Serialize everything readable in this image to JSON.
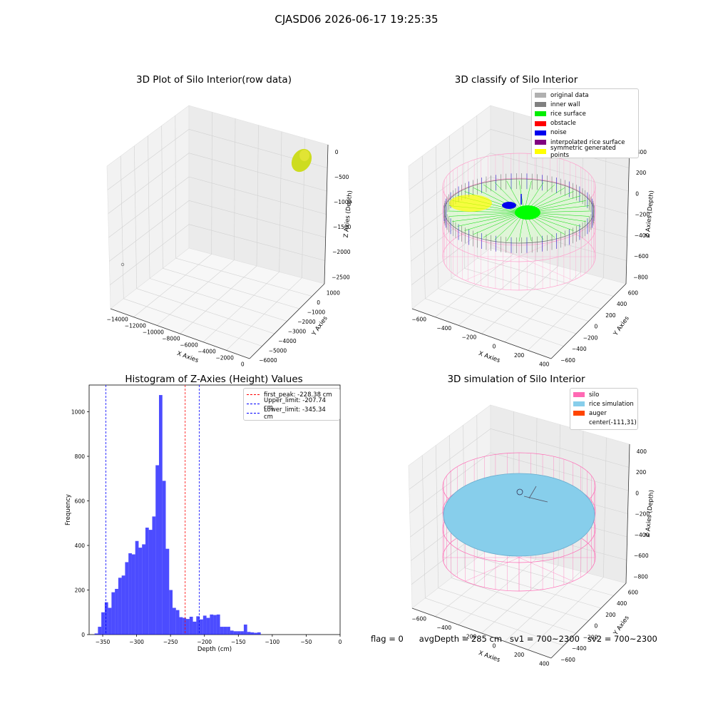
{
  "suptitle": "CJASD06 2026-06-17 19:25:35",
  "panels": {
    "raw": {
      "title": "3D Plot of Silo Interior(row data)",
      "xlabel": "X Axies",
      "ylabel": "Y Axies",
      "zlabel": "Z Axies (Depth)",
      "xticks": [
        "−14000",
        "−12000",
        "−10000",
        "−8000",
        "−6000",
        "−4000",
        "−2000",
        "0"
      ],
      "yticks": [
        "1000",
        "0",
        "−1000",
        "−2000",
        "−3000",
        "−4000",
        "−5000",
        "−6000"
      ],
      "zticks": [
        "0",
        "−500",
        "−1000",
        "−1500",
        "−2000",
        "−2500"
      ]
    },
    "classify": {
      "title": "3D classify of Silo Interior",
      "xlabel": "X Axies",
      "ylabel": "Y Axies",
      "zlabel": "Z Axies (Depth)",
      "xticks": [
        "−600",
        "−400",
        "−200",
        "0",
        "200",
        "400"
      ],
      "yticks": [
        "600",
        "400",
        "200",
        "0",
        "−200",
        "−400",
        "−600"
      ],
      "zticks": [
        "400",
        "200",
        "0",
        "−200",
        "−400",
        "−600",
        "−800"
      ],
      "legend": [
        {
          "label": "original data",
          "color": "#b0b0b0"
        },
        {
          "label": "inner wall",
          "color": "#808080"
        },
        {
          "label": "rice surface",
          "color": "#00ee00"
        },
        {
          "label": "obstacle",
          "color": "#ff0000"
        },
        {
          "label": "noise",
          "color": "#0000ee"
        },
        {
          "label": "interpolated rice surface",
          "color": "#800080"
        },
        {
          "label": "symmetric generated points",
          "color": "#ffff00"
        }
      ]
    },
    "simulation": {
      "title": "3D simulation of Silo Interior",
      "xlabel": "X Axies",
      "ylabel": "Y Axies",
      "zlabel": "Z Axies (Depth)",
      "xticks": [
        "−600",
        "−400",
        "−200",
        "0",
        "200",
        "400"
      ],
      "yticks": [
        "600",
        "400",
        "200",
        "0",
        "−200",
        "−400",
        "−600"
      ],
      "zticks": [
        "400",
        "200",
        "0",
        "−200",
        "−400",
        "−600",
        "−800"
      ],
      "legend": [
        {
          "label": "silo",
          "color": "#ff69b4"
        },
        {
          "label": "rice simulation",
          "color": "#87ceeb"
        },
        {
          "label": "auger",
          "color": "#ff4500"
        },
        {
          "label": "center(-111,31)",
          "color": ""
        }
      ]
    }
  },
  "chart_data": {
    "type": "bar",
    "title": "Histogram of Z-Axies (Height) Values",
    "xlabel": "Depth (cm)",
    "ylabel": "Frequency",
    "xlim": [
      -370,
      0
    ],
    "ylim": [
      0,
      1120
    ],
    "xticks": [
      -350,
      -300,
      -250,
      -200,
      -150,
      -100,
      -50,
      0
    ],
    "yticks": [
      0,
      200,
      400,
      600,
      800,
      1000
    ],
    "bin_start": -362,
    "bin_width": 5,
    "values": [
      5,
      35,
      100,
      145,
      120,
      190,
      205,
      255,
      265,
      325,
      365,
      360,
      420,
      390,
      405,
      480,
      470,
      530,
      760,
      1075,
      690,
      385,
      200,
      120,
      110,
      78,
      75,
      70,
      80,
      58,
      82,
      68,
      85,
      75,
      90,
      88,
      90,
      35,
      35,
      35,
      18,
      15,
      15,
      15,
      45,
      12,
      10,
      8,
      10
    ],
    "color": "#0000ff",
    "lines": [
      {
        "label": "first_peak: -228.38 cm",
        "x": -228.38,
        "color": "#ff0000"
      },
      {
        "label": "Upper_limit: -207.74 cm",
        "x": -207.74,
        "color": "#0000ff"
      },
      {
        "label": "Lower_limit: -345.34 cm",
        "x": -345.34,
        "color": "#0000ff"
      }
    ]
  },
  "footer": {
    "flag": "flag = 0",
    "avg": "avgDepth = 285 cm",
    "sv1": "sv1 = 700~2300",
    "sv2": "sv2 = 700~2300"
  }
}
